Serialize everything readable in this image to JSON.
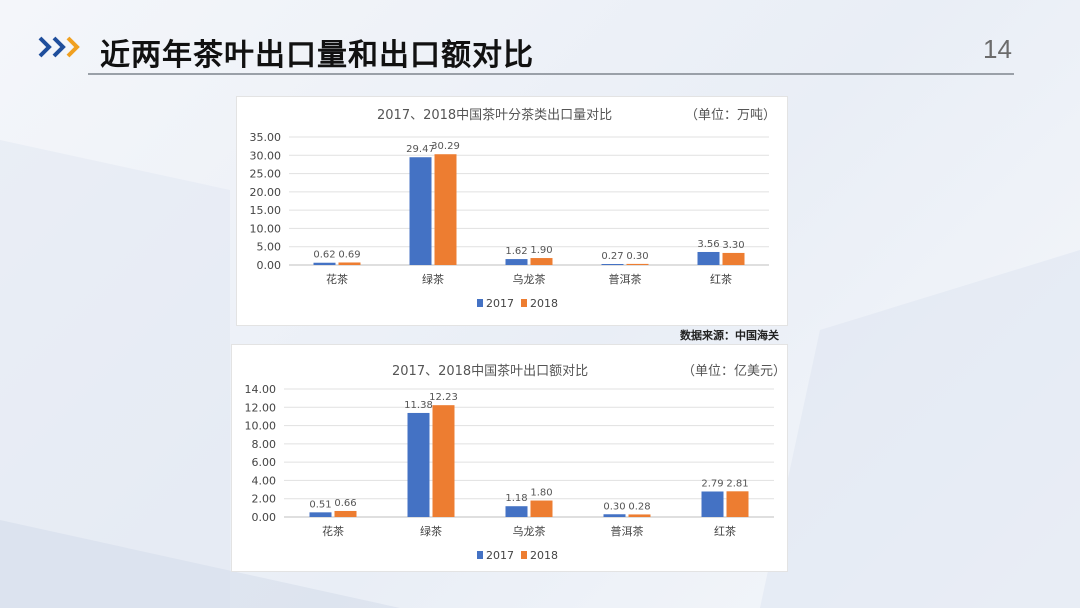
{
  "slide": {
    "title": "近两年茶叶出口量和出口额对比",
    "page_number": "14",
    "source": "数据来源：中国海关",
    "accent_colors": [
      "#1f4e9c",
      "#f0a020"
    ]
  },
  "chart_data": [
    {
      "type": "bar",
      "title": "2017、2018中国茶叶分茶类出口量对比",
      "unit": "（单位：万吨）",
      "categories": [
        "花茶",
        "绿茶",
        "乌龙茶",
        "普洱茶",
        "红茶"
      ],
      "series": [
        {
          "name": "2017",
          "values": [
            0.62,
            29.47,
            1.62,
            0.27,
            3.56
          ],
          "labels": [
            "0.62",
            "29.47",
            "1.62",
            "0.27",
            "3.56"
          ],
          "color": "#4472c4"
        },
        {
          "name": "2018",
          "values": [
            0.69,
            30.29,
            1.9,
            0.3,
            3.3
          ],
          "labels": [
            "0.69",
            "30.29",
            "1.90",
            "0.30",
            "3.30"
          ],
          "color": "#ed7d31"
        }
      ],
      "ylim": [
        0,
        35
      ],
      "yticks": [
        "0.00",
        "5.00",
        "10.00",
        "15.00",
        "20.00",
        "25.00",
        "30.00",
        "35.00"
      ],
      "grid": true,
      "legend": "bottom"
    },
    {
      "type": "bar",
      "title": "2017、2018中国茶叶出口额对比",
      "unit": "（单位：亿美元）",
      "categories": [
        "花茶",
        "绿茶",
        "乌龙茶",
        "普洱茶",
        "红茶"
      ],
      "series": [
        {
          "name": "2017",
          "values": [
            0.51,
            11.38,
            1.18,
            0.3,
            2.79
          ],
          "labels": [
            "0.51",
            "11.38",
            "1.18",
            "0.30",
            "2.79"
          ],
          "color": "#4472c4"
        },
        {
          "name": "2018",
          "values": [
            0.66,
            12.23,
            1.8,
            0.28,
            2.81
          ],
          "labels": [
            "0.66",
            "12.23",
            "1.80",
            "0.28",
            "2.81"
          ],
          "color": "#ed7d31"
        }
      ],
      "ylim": [
        0,
        14
      ],
      "yticks": [
        "0.00",
        "2.00",
        "4.00",
        "6.00",
        "8.00",
        "10.00",
        "12.00",
        "14.00"
      ],
      "grid": true,
      "legend": "bottom"
    }
  ]
}
